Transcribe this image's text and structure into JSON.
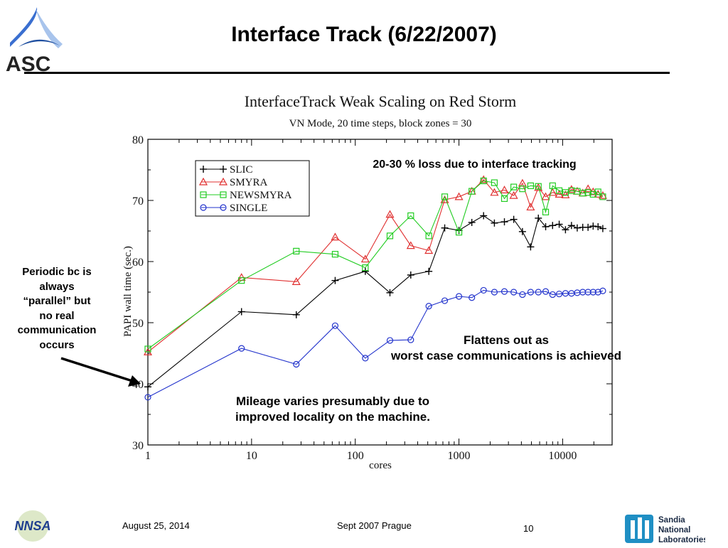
{
  "slide": {
    "title": "Interface Track (6/22/2007)",
    "footer_date": "August 25, 2014",
    "footer_event": "Sept 2007 Prague",
    "page_number": "10"
  },
  "logos": {
    "asc_text": "ASC",
    "nnsa_text": "NNSA",
    "sandia_lines": [
      "Sandia",
      "National",
      "Laboratories"
    ]
  },
  "annotations": {
    "loss": "20-30 % loss due to interface tracking",
    "periodic": [
      "Periodic bc is",
      "always",
      "“parallel” but",
      "no real",
      "communication",
      "occurs"
    ],
    "flattens": [
      "Flattens out as",
      "worst case communications is achieved"
    ],
    "mileage": [
      "Mileage varies presumably due to",
      "improved locality on the machine."
    ]
  },
  "chart_data": {
    "type": "line",
    "title": "InterfaceTrack Weak Scaling on Red Storm",
    "subtitle": "VN Mode, 20 time steps, block zones = 30",
    "xlabel": "cores",
    "ylabel": "PAPI wall time (sec.)",
    "xscale": "log",
    "xlim": [
      1,
      30000
    ],
    "ylim": [
      30,
      80
    ],
    "yticks": [
      30,
      40,
      50,
      60,
      70,
      80
    ],
    "xticks": [
      1,
      10,
      100,
      1000,
      10000
    ],
    "xtick_labels": [
      "1",
      "10",
      "100",
      "1000",
      "10000"
    ],
    "legend_position": "top-left",
    "grid": false,
    "series": [
      {
        "name": "SLIC",
        "color": "#000000",
        "marker": "plus",
        "x": [
          1,
          8,
          27,
          64,
          125,
          216,
          343,
          512,
          729,
          1000,
          1331,
          1728,
          2197,
          2744,
          3375,
          4096,
          4913,
          5832,
          6859,
          8000,
          9261,
          10648,
          12167,
          13824,
          15625,
          17576,
          19683,
          21952,
          24389
        ],
        "y": [
          39.5,
          51.8,
          51.3,
          56.9,
          58.4,
          54.9,
          57.8,
          58.4,
          65.5,
          65.1,
          66.4,
          67.5,
          66.3,
          66.5,
          66.9,
          64.9,
          62.4,
          67.1,
          65.7,
          65.9,
          66.1,
          65.2,
          65.9,
          65.5,
          65.6,
          65.6,
          65.8,
          65.7,
          65.4
        ]
      },
      {
        "name": "SMYRA",
        "color": "#e03030",
        "marker": "triangle",
        "x": [
          1,
          8,
          27,
          64,
          125,
          216,
          343,
          512,
          729,
          1000,
          1331,
          1728,
          2197,
          2744,
          3375,
          4096,
          4913,
          5832,
          6859,
          8000,
          9261,
          10648,
          12167,
          13824,
          15625,
          17576,
          19683,
          21952,
          24389
        ],
        "y": [
          45.2,
          57.4,
          56.7,
          64.0,
          60.4,
          67.7,
          62.6,
          61.8,
          70.1,
          70.6,
          71.5,
          73.4,
          71.3,
          71.7,
          70.8,
          72.8,
          68.9,
          72.1,
          70.6,
          71.3,
          71.0,
          70.9,
          71.8,
          71.5,
          71.2,
          71.9,
          71.4,
          71.0,
          70.8
        ]
      },
      {
        "name": "NEWSMYRA",
        "color": "#22cc22",
        "marker": "square",
        "x": [
          1,
          8,
          27,
          64,
          125,
          216,
          343,
          512,
          729,
          1000,
          1331,
          1728,
          2197,
          2744,
          3375,
          4096,
          4913,
          5832,
          6859,
          8000,
          9261,
          10648,
          12167,
          13824,
          15625,
          17576,
          19683,
          21952,
          24389
        ],
        "y": [
          45.7,
          56.9,
          61.7,
          61.2,
          59.0,
          64.2,
          67.5,
          64.2,
          70.6,
          64.8,
          71.5,
          73.2,
          72.9,
          70.3,
          72.2,
          71.9,
          72.4,
          72.3,
          68.1,
          72.4,
          71.6,
          71.3,
          71.6,
          71.5,
          71.2,
          71.3,
          71.0,
          71.4,
          70.6
        ]
      },
      {
        "name": "SINGLE",
        "color": "#2233cc",
        "marker": "circle",
        "x": [
          1,
          8,
          27,
          64,
          125,
          216,
          343,
          512,
          729,
          1000,
          1331,
          1728,
          2197,
          2744,
          3375,
          4096,
          4913,
          5832,
          6859,
          8000,
          9261,
          10648,
          12167,
          13824,
          15625,
          17576,
          19683,
          21952,
          24389
        ],
        "y": [
          37.8,
          45.8,
          43.2,
          49.5,
          44.2,
          47.1,
          47.2,
          52.7,
          53.6,
          54.3,
          54.1,
          55.3,
          55.0,
          55.1,
          55.0,
          54.6,
          55.0,
          55.0,
          55.1,
          54.6,
          54.7,
          54.8,
          54.8,
          54.9,
          55.0,
          55.0,
          55.0,
          55.0,
          55.2
        ]
      }
    ]
  }
}
